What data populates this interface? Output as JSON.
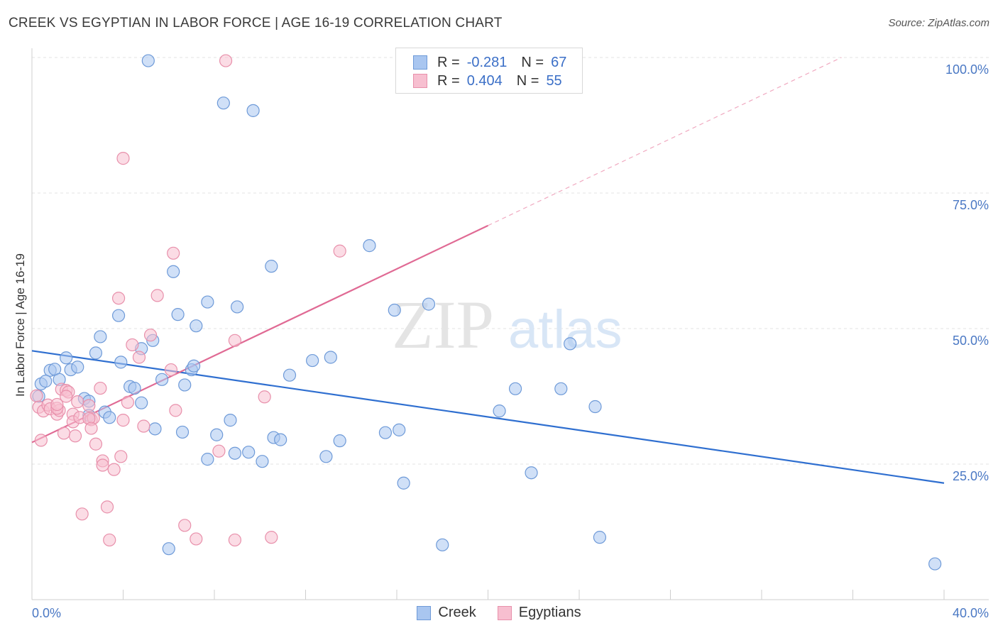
{
  "header": {
    "title": "CREEK VS EGYPTIAN IN LABOR FORCE | AGE 16-19 CORRELATION CHART",
    "source": "Source: ZipAtlas.com"
  },
  "watermark": {
    "zip": "ZIP",
    "atlas": "atlas"
  },
  "legend": {
    "rows": [
      {
        "r_label": "R =",
        "r_value": "-0.281",
        "n_label": "N =",
        "n_value": "67",
        "color": "#a9c6f0",
        "border": "#6e9ad8"
      },
      {
        "r_label": "R =",
        "r_value": "0.404",
        "n_label": "N =",
        "n_value": "55",
        "color": "#f7bfd0",
        "border": "#e890ab"
      }
    ]
  },
  "bottom_legend": {
    "creek": "Creek",
    "egyptians": "Egyptians"
  },
  "chart_data": {
    "type": "scatter",
    "title": "CREEK VS EGYPTIAN IN LABOR FORCE | AGE 16-19 CORRELATION CHART",
    "xlabel": "",
    "ylabel": "In Labor Force | Age 16-19",
    "xlim": [
      0,
      40
    ],
    "ylim": [
      0,
      100
    ],
    "x_tick_labels": [
      "0.0%",
      "40.0%"
    ],
    "y_ticks": [
      25,
      50,
      75,
      100
    ],
    "y_tick_labels": [
      "25.0%",
      "50.0%",
      "75.0%",
      "100.0%"
    ],
    "grid": true,
    "legend_placement": "top-center",
    "series": [
      {
        "name": "Creek",
        "color": "#6e9ad8",
        "fill": "#a9c6f0",
        "trend": {
          "x": [
            0,
            40
          ],
          "y": [
            45.9,
            21.5
          ],
          "color": "#2f6fd0"
        },
        "points": [
          [
            5.1,
            99.4
          ],
          [
            8.4,
            91.6
          ],
          [
            9.7,
            90.2
          ],
          [
            6.2,
            60.5
          ],
          [
            10.5,
            61.5
          ],
          [
            14.8,
            65.3
          ],
          [
            3.8,
            52.4
          ],
          [
            6.4,
            52.6
          ],
          [
            7.7,
            54.9
          ],
          [
            9.0,
            54.0
          ],
          [
            7.2,
            50.5
          ],
          [
            3.0,
            48.5
          ],
          [
            5.3,
            47.8
          ],
          [
            4.8,
            46.3
          ],
          [
            2.8,
            45.5
          ],
          [
            1.5,
            44.6
          ],
          [
            0.8,
            42.3
          ],
          [
            1.0,
            42.5
          ],
          [
            1.7,
            42.4
          ],
          [
            2.0,
            42.9
          ],
          [
            3.9,
            43.8
          ],
          [
            5.7,
            40.6
          ],
          [
            6.7,
            39.6
          ],
          [
            7.0,
            42.4
          ],
          [
            7.1,
            43.1
          ],
          [
            11.3,
            41.4
          ],
          [
            12.3,
            44.1
          ],
          [
            13.1,
            44.7
          ],
          [
            15.9,
            53.4
          ],
          [
            17.4,
            54.5
          ],
          [
            23.6,
            47.2
          ],
          [
            0.4,
            39.8
          ],
          [
            0.6,
            40.3
          ],
          [
            1.2,
            40.6
          ],
          [
            2.3,
            37.1
          ],
          [
            2.5,
            36.6
          ],
          [
            4.3,
            39.3
          ],
          [
            4.5,
            39.0
          ],
          [
            4.8,
            36.3
          ],
          [
            2.5,
            34.0
          ],
          [
            3.2,
            34.6
          ],
          [
            3.4,
            33.6
          ],
          [
            5.4,
            31.5
          ],
          [
            6.6,
            30.9
          ],
          [
            8.1,
            30.4
          ],
          [
            8.7,
            33.1
          ],
          [
            10.6,
            29.9
          ],
          [
            10.9,
            29.5
          ],
          [
            13.5,
            29.3
          ],
          [
            15.5,
            30.8
          ],
          [
            16.1,
            31.3
          ],
          [
            21.2,
            38.9
          ],
          [
            20.5,
            34.8
          ],
          [
            23.2,
            38.9
          ],
          [
            24.7,
            35.6
          ],
          [
            7.7,
            25.9
          ],
          [
            8.9,
            27.0
          ],
          [
            9.5,
            27.2
          ],
          [
            10.1,
            25.5
          ],
          [
            12.9,
            26.4
          ],
          [
            16.3,
            21.5
          ],
          [
            21.9,
            23.4
          ],
          [
            6.0,
            9.4
          ],
          [
            18.0,
            10.1
          ],
          [
            24.9,
            11.5
          ],
          [
            39.6,
            6.6
          ],
          [
            0.3,
            37.5
          ]
        ]
      },
      {
        "name": "Egyptians",
        "color": "#e890ab",
        "fill": "#f7bfd0",
        "trend": {
          "x": [
            0,
            20
          ],
          "y": [
            29.0,
            69.0
          ],
          "color": "#e06a94",
          "dashed_extension": {
            "x": [
              20,
              35.5
            ],
            "y": [
              69.0,
              100.0
            ]
          }
        },
        "points": [
          [
            8.5,
            99.4
          ],
          [
            4.0,
            81.4
          ],
          [
            6.2,
            63.9
          ],
          [
            13.5,
            64.3
          ],
          [
            3.8,
            55.6
          ],
          [
            5.5,
            56.1
          ],
          [
            5.2,
            48.8
          ],
          [
            8.9,
            47.8
          ],
          [
            4.4,
            47.0
          ],
          [
            4.7,
            44.7
          ],
          [
            6.1,
            42.4
          ],
          [
            0.2,
            37.6
          ],
          [
            0.3,
            35.5
          ],
          [
            0.5,
            34.8
          ],
          [
            0.7,
            35.9
          ],
          [
            0.8,
            35.2
          ],
          [
            1.1,
            34.2
          ],
          [
            1.2,
            34.9
          ],
          [
            1.1,
            35.3
          ],
          [
            1.1,
            36.0
          ],
          [
            1.3,
            38.8
          ],
          [
            1.5,
            38.6
          ],
          [
            1.6,
            38.3
          ],
          [
            1.5,
            37.5
          ],
          [
            2.0,
            36.5
          ],
          [
            1.8,
            34.2
          ],
          [
            1.8,
            32.8
          ],
          [
            2.1,
            33.6
          ],
          [
            2.6,
            33.2
          ],
          [
            2.7,
            33.5
          ],
          [
            2.5,
            35.8
          ],
          [
            2.5,
            33.4
          ],
          [
            3.0,
            39.0
          ],
          [
            4.2,
            36.4
          ],
          [
            4.0,
            33.1
          ],
          [
            4.9,
            32.0
          ],
          [
            6.3,
            34.9
          ],
          [
            10.2,
            37.4
          ],
          [
            1.4,
            30.7
          ],
          [
            1.9,
            30.2
          ],
          [
            2.6,
            31.6
          ],
          [
            0.4,
            29.4
          ],
          [
            2.8,
            28.7
          ],
          [
            3.1,
            25.6
          ],
          [
            3.1,
            24.8
          ],
          [
            3.6,
            24.0
          ],
          [
            3.9,
            26.4
          ],
          [
            8.2,
            27.4
          ],
          [
            2.2,
            15.8
          ],
          [
            3.3,
            17.1
          ],
          [
            6.7,
            13.7
          ],
          [
            3.4,
            11.0
          ],
          [
            7.2,
            11.2
          ],
          [
            8.9,
            11.0
          ],
          [
            10.5,
            11.5
          ]
        ]
      }
    ]
  }
}
